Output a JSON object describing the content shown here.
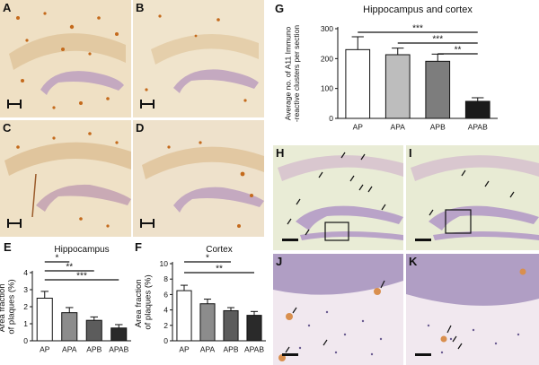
{
  "panels": {
    "A": "A",
    "B": "B",
    "C": "C",
    "D": "D",
    "E": "E",
    "F": "F",
    "G": "G",
    "H": "H",
    "I": "I",
    "J": "J",
    "K": "K"
  },
  "chart_data": [
    {
      "panel": "E",
      "type": "bar",
      "title": "Hippocampus",
      "ylabel": "Area fraction of plaques (%)",
      "categories": [
        "AP",
        "APA",
        "APB",
        "APAB"
      ],
      "values": [
        2.5,
        1.65,
        1.2,
        0.75
      ],
      "errors": [
        0.4,
        0.3,
        0.2,
        0.2
      ],
      "fills": [
        "#ffffff",
        "#8c8c8c",
        "#5c5c5c",
        "#2a2a2a"
      ],
      "ylim": [
        0,
        4
      ],
      "yticks": [
        "0",
        "1",
        "2",
        "3",
        "4"
      ],
      "significance": [
        {
          "from": 0,
          "to": 1,
          "label": "*"
        },
        {
          "from": 0,
          "to": 2,
          "label": "**"
        },
        {
          "from": 0,
          "to": 3,
          "label": "***"
        }
      ]
    },
    {
      "panel": "F",
      "type": "bar",
      "title": "Cortex",
      "ylabel": "Area fraction of plaques (%)",
      "categories": [
        "AP",
        "APA",
        "APB",
        "APAB"
      ],
      "values": [
        6.5,
        4.8,
        3.9,
        3.3
      ],
      "errors": [
        0.7,
        0.6,
        0.4,
        0.5
      ],
      "fills": [
        "#ffffff",
        "#8c8c8c",
        "#5c5c5c",
        "#2a2a2a"
      ],
      "ylim": [
        0,
        10
      ],
      "yticks": [
        "0",
        "2",
        "4",
        "6",
        "8",
        "10"
      ],
      "significance": [
        {
          "from": 0,
          "to": 2,
          "label": "*"
        },
        {
          "from": 0,
          "to": 3,
          "label": "**"
        }
      ]
    },
    {
      "panel": "G",
      "type": "bar",
      "title": "Hippocampus and cortex",
      "ylabel": "Average no. of A11 Immuno-reactive clusters per section",
      "categories": [
        "AP",
        "APA",
        "APB",
        "APAB"
      ],
      "values": [
        230,
        213,
        191,
        57
      ],
      "errors": [
        43,
        22,
        24,
        12
      ],
      "fills": [
        "#ffffff",
        "#bdbdbd",
        "#7d7d7d",
        "#1a1a1a"
      ],
      "ylim": [
        0,
        300
      ],
      "yticks": [
        "0",
        "100",
        "200",
        "300"
      ],
      "significance": [
        {
          "from": 0,
          "to": 3,
          "label": "***"
        },
        {
          "from": 1,
          "to": 3,
          "label": "***"
        },
        {
          "from": 2,
          "to": 3,
          "label": "**"
        }
      ]
    }
  ],
  "colors": {
    "hippocampus_bg": "#efe3cc",
    "plaque": "#c46a1c",
    "cell_layer": "#b7a6cf",
    "stain_bg": "#f3ecf0"
  }
}
